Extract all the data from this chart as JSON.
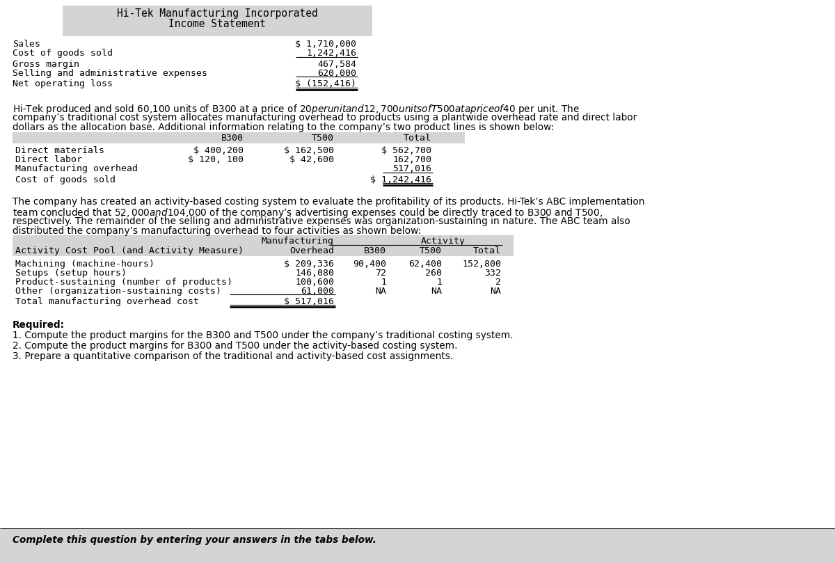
{
  "bg_color": "#ffffff",
  "bottom_bar_color": "#d4d4d4",
  "header_bg_color": "#d4d4d4",
  "table_header_bg": "#d4d4d4",
  "income_title_line1": "Hi-Tek Manufacturing Incorporated",
  "income_title_line2": "Income Statement",
  "income_rows": [
    {
      "label": "Sales",
      "value": "$ 1,710,000"
    },
    {
      "label": "Cost of goods sold",
      "value": "1,242,416"
    },
    {
      "label": "Gross margin",
      "value": "467,584"
    },
    {
      "label": "Selling and administrative expenses",
      "value": "620,000"
    },
    {
      "label": "Net operating loss",
      "value": "$ (152,416)"
    }
  ],
  "para1_line1": "Hi-Tek produced and sold 60,100 units of B300 at a price of $20 per unit and 12,700 units of T500 at a price of $40 per unit. The",
  "para1_line2": "company’s traditional cost system allocates manufacturing overhead to products using a plantwide overhead rate and direct labor",
  "para1_line3": "dollars as the allocation base. Additional information relating to the company’s two product lines is shown below:",
  "table1_col_b300": "B300",
  "table1_col_t500": "T500",
  "table1_col_total": "Total",
  "table1_rows": [
    {
      "label": "Direct materials",
      "b300": "$ 400,200",
      "t500": "$ 162,500",
      "total": "$ 562,700"
    },
    {
      "label": "Direct labor",
      "b300": "$ 120, 100",
      "t500": "$ 42,600",
      "total": "162,700"
    },
    {
      "label": "Manufacturing overhead",
      "b300": "",
      "t500": "",
      "total": "517,016"
    },
    {
      "label": "Cost of goods sold",
      "b300": "",
      "t500": "",
      "total": "$ 1,242,416"
    }
  ],
  "para2_line1": "The company has created an activity-based costing system to evaluate the profitability of its products. Hi-Tek’s ABC implementation",
  "para2_line2": "team concluded that $52,000 and $104,000 of the company’s advertising expenses could be directly traced to B300 and T500,",
  "para2_line3": "respectively. The remainder of the selling and administrative expenses was organization-sustaining in nature. The ABC team also",
  "para2_line4": "distributed the company’s manufacturing overhead to four activities as shown below:",
  "table2_header_mfg": "Manufacturing",
  "table2_header_overhead": "Overhead",
  "table2_header_activity": "Activity",
  "table2_header_b300": "B300",
  "table2_header_t500": "T500",
  "table2_header_total": "Total",
  "table2_header_pool": "Activity Cost Pool (and Activity Measure)",
  "table2_rows": [
    {
      "label": "Machining (machine-hours)",
      "overhead": "$ 209,336",
      "b300": "90,400",
      "t500": "62,400",
      "total": "152,800"
    },
    {
      "label": "Setups (setup hours)",
      "overhead": "146,080",
      "b300": "72",
      "t500": "260",
      "total": "332"
    },
    {
      "label": "Product-sustaining (number of products)",
      "overhead": "100,600",
      "b300": "1",
      "t500": "1",
      "total": "2"
    },
    {
      "label": "Other (organization-sustaining costs)",
      "overhead": "61,000",
      "b300": "NA",
      "t500": "NA",
      "total": "NA"
    },
    {
      "label": "Total manufacturing overhead cost",
      "overhead": "$ 517,016",
      "b300": "",
      "t500": "",
      "total": ""
    }
  ],
  "required_header": "Required:",
  "required_items": [
    "1. Compute the product margins for the B300 and T500 under the company’s traditional costing system.",
    "2. Compute the product margins for B300 and T500 under the activity-based costing system.",
    "3. Prepare a quantitative comparison of the traditional and activity-based cost assignments."
  ],
  "bottom_text": "Complete this question by entering your answers in the tabs below.",
  "mono": "DejaVu Sans Mono",
  "sans": "DejaVu Sans",
  "fs": 9.5,
  "fs_para": 9.8,
  "fs_title": 10.5
}
